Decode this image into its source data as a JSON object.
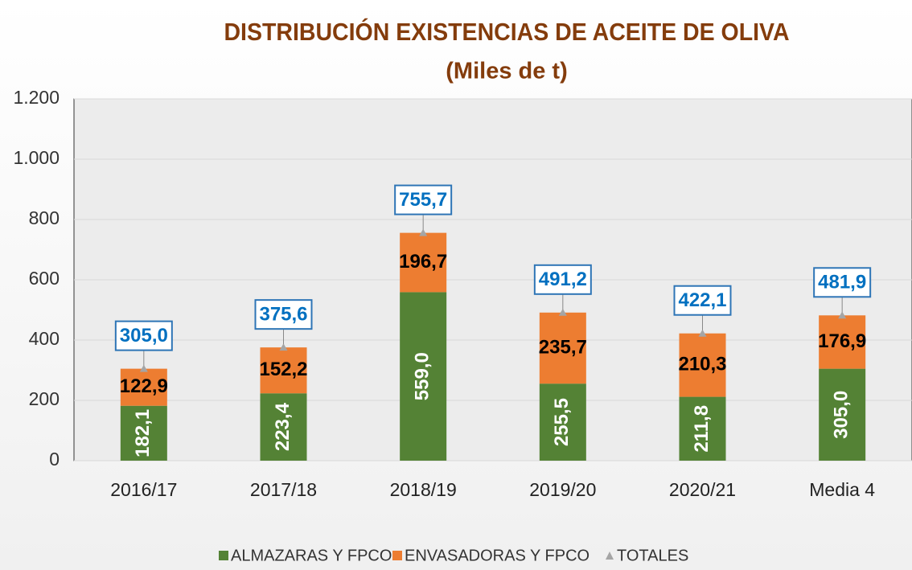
{
  "chart_data": {
    "type": "bar",
    "stacked": true,
    "title": "DISTRIBUCIÓN EXISTENCIAS DE ACEITE DE OLIVA",
    "subtitle": "(Miles de t)",
    "categories": [
      "2016/17",
      "2017/18",
      "2018/19",
      "2019/20",
      "2020/21",
      "Media 4"
    ],
    "series": [
      {
        "name": "ALMAZARAS Y FPCO",
        "color": "#548235",
        "values": [
          182.1,
          223.4,
          559.0,
          255.5,
          211.8,
          305.0
        ],
        "value_labels": [
          "182,1",
          "223,4",
          "559,0",
          "255,5",
          "211,8",
          "305,0"
        ]
      },
      {
        "name": "ENVASADORAS Y FPCO",
        "color": "#ed7d31",
        "values": [
          122.9,
          152.2,
          196.7,
          235.7,
          210.3,
          176.9
        ],
        "value_labels": [
          "122,9",
          "152,2",
          "196,7",
          "235,7",
          "210,3",
          "176,9"
        ]
      },
      {
        "name": "TOTALES",
        "type": "marker",
        "color": "#a5a5a5",
        "values": [
          305.0,
          375.6,
          755.7,
          491.2,
          422.1,
          481.9
        ],
        "value_labels": [
          "305,0",
          "375,6",
          "755,7",
          "491,2",
          "422,1",
          "481,9"
        ]
      }
    ],
    "ylim": [
      0,
      1200
    ],
    "yticks": [
      0,
      200,
      400,
      600,
      800,
      {
        "value": 1000,
        "label": "1.000"
      },
      {
        "value": 1200,
        "label": "1.200"
      }
    ],
    "grid": true,
    "legend": "bottom"
  }
}
